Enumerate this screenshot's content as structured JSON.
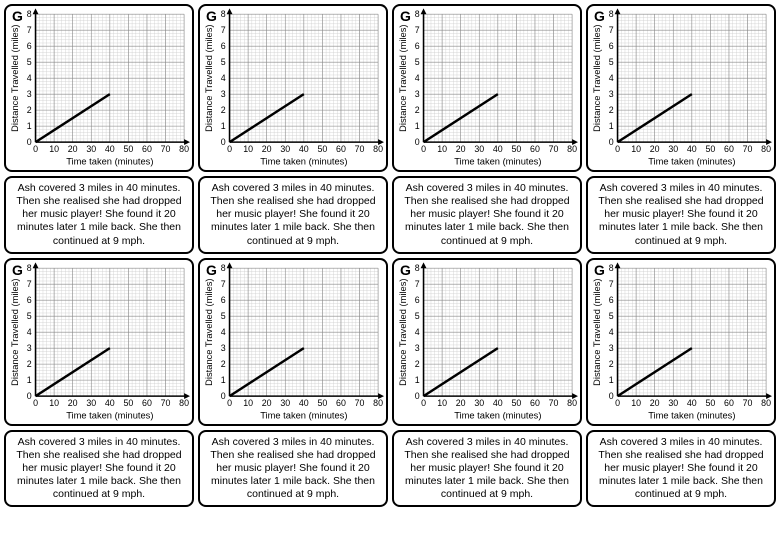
{
  "layout": {
    "rows": 4,
    "cols": 4,
    "cell_types": [
      "chart",
      "chart",
      "chart",
      "chart",
      "text",
      "text",
      "text",
      "text",
      "chart",
      "chart",
      "chart",
      "chart",
      "text",
      "text",
      "text",
      "text"
    ]
  },
  "chart": {
    "type": "line",
    "letter": "G",
    "x_label": "Time taken (minutes)",
    "y_label": "Distance Travelled (miles)",
    "xlim": [
      0,
      80
    ],
    "ylim": [
      0,
      8
    ],
    "x_ticks": [
      0,
      10,
      20,
      30,
      40,
      50,
      60,
      70,
      80
    ],
    "y_ticks": [
      0,
      1,
      2,
      3,
      4,
      5,
      6,
      7,
      8
    ],
    "minor_grid_step_x": 2,
    "minor_grid_step_y": 0.2,
    "line_points": [
      [
        0,
        0
      ],
      [
        40,
        3
      ]
    ],
    "line_color": "#000000",
    "line_width": 2.5,
    "axis_color": "#000000",
    "major_grid_color": "#888888",
    "minor_grid_color": "#cccccc",
    "background_color": "#ffffff",
    "tick_fontsize": 9,
    "label_fontsize": 9.5,
    "letter_fontsize": 14
  },
  "caption": {
    "lines": [
      "Ash covered 3 miles in 40 minutes.",
      "Then she realised she had dropped",
      "her music player! She found it 20",
      "minutes later 1 mile back. She then",
      "continued at 9 mph."
    ],
    "fontsize": 10.5,
    "color": "#000000"
  }
}
